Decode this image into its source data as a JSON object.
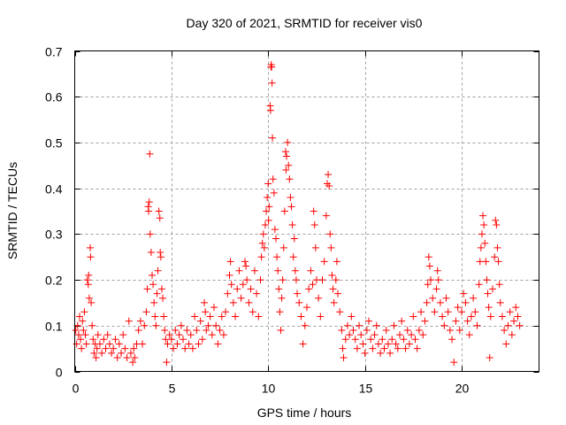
{
  "chart_data": {
    "type": "scatter",
    "title": "Day 320 of 2021, SRMTID for receiver vis0",
    "xlabel": "GPS time / hours",
    "ylabel": "SRMTID / TECUs",
    "xlim": [
      0,
      24
    ],
    "ylim": [
      0,
      0.7
    ],
    "xticks": [
      0,
      5,
      10,
      15,
      20
    ],
    "xtick_labels": [
      "0",
      "5",
      "10",
      "15",
      "20"
    ],
    "yticks": [
      0,
      0.1,
      0.2,
      0.3,
      0.4,
      0.5,
      0.6,
      0.7
    ],
    "ytick_labels": [
      "0",
      "0.1",
      "0.2",
      "0.3",
      "0.4",
      "0.5",
      "0.6",
      "0.7"
    ],
    "grid": true,
    "legend": "none",
    "marker": "plus",
    "series": [
      {
        "name": "vis0",
        "color": "#ff0000",
        "points": [
          [
            0.05,
            0.09
          ],
          [
            0.1,
            0.06
          ],
          [
            0.15,
            0.1
          ],
          [
            0.2,
            0.08
          ],
          [
            0.25,
            0.12
          ],
          [
            0.3,
            0.07
          ],
          [
            0.35,
            0.05
          ],
          [
            0.4,
            0.11
          ],
          [
            0.45,
            0.09
          ],
          [
            0.5,
            0.13
          ],
          [
            0.55,
            0.08
          ],
          [
            0.6,
            0.06
          ],
          [
            0.65,
            0.2
          ],
          [
            0.7,
            0.19
          ],
          [
            0.72,
            0.21
          ],
          [
            0.75,
            0.16
          ],
          [
            0.8,
            0.27
          ],
          [
            0.82,
            0.25
          ],
          [
            0.85,
            0.15
          ],
          [
            0.9,
            0.1
          ],
          [
            0.95,
            0.07
          ],
          [
            1.0,
            0.04
          ],
          [
            1.05,
            0.06
          ],
          [
            1.1,
            0.03
          ],
          [
            1.15,
            0.05
          ],
          [
            1.2,
            0.08
          ],
          [
            1.3,
            0.06
          ],
          [
            1.4,
            0.04
          ],
          [
            1.5,
            0.07
          ],
          [
            1.6,
            0.05
          ],
          [
            1.7,
            0.08
          ],
          [
            1.8,
            0.06
          ],
          [
            1.9,
            0.04
          ],
          [
            2.0,
            0.05
          ],
          [
            2.1,
            0.07
          ],
          [
            2.2,
            0.03
          ],
          [
            2.3,
            0.06
          ],
          [
            2.4,
            0.04
          ],
          [
            2.5,
            0.08
          ],
          [
            2.6,
            0.05
          ],
          [
            2.7,
            0.03
          ],
          [
            2.8,
            0.11
          ],
          [
            2.9,
            0.04
          ],
          [
            3.0,
            0.02
          ],
          [
            3.05,
            0.05
          ],
          [
            3.1,
            0.03
          ],
          [
            3.2,
            0.06
          ],
          [
            3.3,
            0.09
          ],
          [
            3.4,
            0.11
          ],
          [
            3.5,
            0.06
          ],
          [
            3.6,
            0.1
          ],
          [
            3.7,
            0.13
          ],
          [
            3.75,
            0.18
          ],
          [
            3.8,
            0.36
          ],
          [
            3.82,
            0.35
          ],
          [
            3.85,
            0.37
          ],
          [
            3.88,
            0.475
          ],
          [
            3.9,
            0.3
          ],
          [
            3.95,
            0.26
          ],
          [
            4.0,
            0.21
          ],
          [
            4.05,
            0.19
          ],
          [
            4.1,
            0.15
          ],
          [
            4.15,
            0.12
          ],
          [
            4.2,
            0.1
          ],
          [
            4.25,
            0.17
          ],
          [
            4.3,
            0.22
          ],
          [
            4.35,
            0.35
          ],
          [
            4.4,
            0.335
          ],
          [
            4.42,
            0.26
          ],
          [
            4.45,
            0.25
          ],
          [
            4.5,
            0.18
          ],
          [
            4.55,
            0.16
          ],
          [
            4.6,
            0.12
          ],
          [
            4.65,
            0.09
          ],
          [
            4.7,
            0.07
          ],
          [
            4.75,
            0.02
          ],
          [
            4.8,
            0.06
          ],
          [
            4.9,
            0.08
          ],
          [
            5.0,
            0.07
          ],
          [
            5.1,
            0.05
          ],
          [
            5.2,
            0.09
          ],
          [
            5.3,
            0.06
          ],
          [
            5.4,
            0.08
          ],
          [
            5.5,
            0.1
          ],
          [
            5.6,
            0.07
          ],
          [
            5.7,
            0.05
          ],
          [
            5.8,
            0.09
          ],
          [
            5.9,
            0.06
          ],
          [
            6.0,
            0.08
          ],
          [
            6.1,
            0.05
          ],
          [
            6.2,
            0.12
          ],
          [
            6.3,
            0.09
          ],
          [
            6.4,
            0.06
          ],
          [
            6.5,
            0.11
          ],
          [
            6.6,
            0.07
          ],
          [
            6.7,
            0.15
          ],
          [
            6.75,
            0.13
          ],
          [
            6.8,
            0.09
          ],
          [
            6.9,
            0.1
          ],
          [
            7.0,
            0.12
          ],
          [
            7.1,
            0.08
          ],
          [
            7.2,
            0.14
          ],
          [
            7.3,
            0.1
          ],
          [
            7.4,
            0.06
          ],
          [
            7.5,
            0.09
          ],
          [
            7.6,
            0.12
          ],
          [
            7.7,
            0.08
          ],
          [
            7.8,
            0.13
          ],
          [
            7.9,
            0.17
          ],
          [
            8.0,
            0.21
          ],
          [
            8.05,
            0.24
          ],
          [
            8.1,
            0.19
          ],
          [
            8.2,
            0.15
          ],
          [
            8.3,
            0.12
          ],
          [
            8.4,
            0.18
          ],
          [
            8.5,
            0.22
          ],
          [
            8.6,
            0.16
          ],
          [
            8.7,
            0.19
          ],
          [
            8.8,
            0.24
          ],
          [
            8.85,
            0.23
          ],
          [
            8.9,
            0.2
          ],
          [
            9.0,
            0.15
          ],
          [
            9.1,
            0.18
          ],
          [
            9.2,
            0.13
          ],
          [
            9.3,
            0.22
          ],
          [
            9.4,
            0.17
          ],
          [
            9.5,
            0.12
          ],
          [
            9.6,
            0.2
          ],
          [
            9.65,
            0.25
          ],
          [
            9.7,
            0.28
          ],
          [
            9.75,
            0.3
          ],
          [
            9.8,
            0.27
          ],
          [
            9.85,
            0.32
          ],
          [
            9.9,
            0.35
          ],
          [
            9.95,
            0.38
          ],
          [
            10.0,
            0.41
          ],
          [
            10.02,
            0.33
          ],
          [
            10.05,
            0.36
          ],
          [
            10.1,
            0.58
          ],
          [
            10.12,
            0.57
          ],
          [
            10.14,
            0.665
          ],
          [
            10.16,
            0.67
          ],
          [
            10.18,
            0.665
          ],
          [
            10.2,
            0.63
          ],
          [
            10.22,
            0.51
          ],
          [
            10.25,
            0.42
          ],
          [
            10.3,
            0.39
          ],
          [
            10.35,
            0.31
          ],
          [
            10.4,
            0.29
          ],
          [
            10.45,
            0.25
          ],
          [
            10.5,
            0.22
          ],
          [
            10.55,
            0.18
          ],
          [
            10.6,
            0.13
          ],
          [
            10.65,
            0.09
          ],
          [
            10.7,
            0.16
          ],
          [
            10.75,
            0.2
          ],
          [
            10.8,
            0.27
          ],
          [
            10.85,
            0.35
          ],
          [
            10.9,
            0.48
          ],
          [
            10.92,
            0.44
          ],
          [
            10.95,
            0.47
          ],
          [
            11.0,
            0.5
          ],
          [
            11.05,
            0.45
          ],
          [
            11.1,
            0.42
          ],
          [
            11.15,
            0.38
          ],
          [
            11.2,
            0.36
          ],
          [
            11.25,
            0.32
          ],
          [
            11.3,
            0.25
          ],
          [
            11.35,
            0.29
          ],
          [
            11.4,
            0.22
          ],
          [
            11.45,
            0.2
          ],
          [
            11.5,
            0.17
          ],
          [
            11.6,
            0.15
          ],
          [
            11.7,
            0.12
          ],
          [
            11.8,
            0.06
          ],
          [
            11.9,
            0.1
          ],
          [
            12.0,
            0.14
          ],
          [
            12.1,
            0.18
          ],
          [
            12.2,
            0.22
          ],
          [
            12.3,
            0.19
          ],
          [
            12.35,
            0.35
          ],
          [
            12.4,
            0.32
          ],
          [
            12.45,
            0.27
          ],
          [
            12.5,
            0.2
          ],
          [
            12.6,
            0.16
          ],
          [
            12.7,
            0.12
          ],
          [
            12.8,
            0.2
          ],
          [
            12.9,
            0.24
          ],
          [
            13.0,
            0.34
          ],
          [
            13.05,
            0.41
          ],
          [
            13.1,
            0.43
          ],
          [
            13.15,
            0.405
          ],
          [
            13.2,
            0.3
          ],
          [
            13.25,
            0.27
          ],
          [
            13.3,
            0.21
          ],
          [
            13.35,
            0.18
          ],
          [
            13.4,
            0.15
          ],
          [
            13.5,
            0.2
          ],
          [
            13.55,
            0.24
          ],
          [
            13.6,
            0.17
          ],
          [
            13.7,
            0.13
          ],
          [
            13.8,
            0.09
          ],
          [
            13.85,
            0.05
          ],
          [
            13.9,
            0.03
          ],
          [
            14.0,
            0.07
          ],
          [
            14.1,
            0.1
          ],
          [
            14.2,
            0.08
          ],
          [
            14.3,
            0.12
          ],
          [
            14.4,
            0.09
          ],
          [
            14.5,
            0.07
          ],
          [
            14.6,
            0.05
          ],
          [
            14.7,
            0.1
          ],
          [
            14.8,
            0.08
          ],
          [
            14.9,
            0.06
          ],
          [
            15.0,
            0.04
          ],
          [
            15.1,
            0.09
          ],
          [
            15.2,
            0.11
          ],
          [
            15.3,
            0.07
          ],
          [
            15.4,
            0.05
          ],
          [
            15.5,
            0.08
          ],
          [
            15.6,
            0.1
          ],
          [
            15.7,
            0.06
          ],
          [
            15.8,
            0.04
          ],
          [
            15.9,
            0.07
          ],
          [
            16.0,
            0.05
          ],
          [
            16.1,
            0.09
          ],
          [
            16.2,
            0.06
          ],
          [
            16.3,
            0.04
          ],
          [
            16.4,
            0.07
          ],
          [
            16.5,
            0.1
          ],
          [
            16.6,
            0.06
          ],
          [
            16.7,
            0.05
          ],
          [
            16.8,
            0.08
          ],
          [
            16.9,
            0.11
          ],
          [
            17.0,
            0.07
          ],
          [
            17.1,
            0.05
          ],
          [
            17.2,
            0.09
          ],
          [
            17.3,
            0.06
          ],
          [
            17.4,
            0.08
          ],
          [
            17.5,
            0.12
          ],
          [
            17.6,
            0.07
          ],
          [
            17.7,
            0.05
          ],
          [
            17.8,
            0.09
          ],
          [
            17.9,
            0.13
          ],
          [
            18.0,
            0.08
          ],
          [
            18.1,
            0.11
          ],
          [
            18.2,
            0.15
          ],
          [
            18.25,
            0.19
          ],
          [
            18.3,
            0.25
          ],
          [
            18.35,
            0.23
          ],
          [
            18.4,
            0.2
          ],
          [
            18.5,
            0.16
          ],
          [
            18.6,
            0.13
          ],
          [
            18.7,
            0.18
          ],
          [
            18.75,
            0.22
          ],
          [
            18.8,
            0.2
          ],
          [
            18.9,
            0.15
          ],
          [
            19.0,
            0.12
          ],
          [
            19.1,
            0.1
          ],
          [
            19.2,
            0.16
          ],
          [
            19.3,
            0.13
          ],
          [
            19.4,
            0.09
          ],
          [
            19.5,
            0.07
          ],
          [
            19.6,
            0.02
          ],
          [
            19.7,
            0.11
          ],
          [
            19.8,
            0.14
          ],
          [
            19.9,
            0.09
          ],
          [
            20.0,
            0.13
          ],
          [
            20.1,
            0.17
          ],
          [
            20.2,
            0.15
          ],
          [
            20.3,
            0.11
          ],
          [
            20.4,
            0.08
          ],
          [
            20.5,
            0.12
          ],
          [
            20.6,
            0.16
          ],
          [
            20.7,
            0.13
          ],
          [
            20.8,
            0.1
          ],
          [
            20.9,
            0.19
          ],
          [
            20.95,
            0.24
          ],
          [
            21.0,
            0.27
          ],
          [
            21.05,
            0.3
          ],
          [
            21.1,
            0.34
          ],
          [
            21.15,
            0.32
          ],
          [
            21.2,
            0.28
          ],
          [
            21.25,
            0.24
          ],
          [
            21.3,
            0.2
          ],
          [
            21.35,
            0.17
          ],
          [
            21.4,
            0.14
          ],
          [
            21.45,
            0.03
          ],
          [
            21.5,
            0.12
          ],
          [
            21.6,
            0.18
          ],
          [
            21.7,
            0.25
          ],
          [
            21.75,
            0.33
          ],
          [
            21.8,
            0.32
          ],
          [
            21.85,
            0.27
          ],
          [
            21.9,
            0.24
          ],
          [
            21.95,
            0.19
          ],
          [
            22.0,
            0.15
          ],
          [
            22.1,
            0.12
          ],
          [
            22.2,
            0.09
          ],
          [
            22.3,
            0.06
          ],
          [
            22.4,
            0.1
          ],
          [
            22.5,
            0.13
          ],
          [
            22.6,
            0.08
          ],
          [
            22.7,
            0.11
          ],
          [
            22.8,
            0.14
          ],
          [
            22.9,
            0.12
          ],
          [
            23.0,
            0.1
          ]
        ]
      }
    ]
  }
}
